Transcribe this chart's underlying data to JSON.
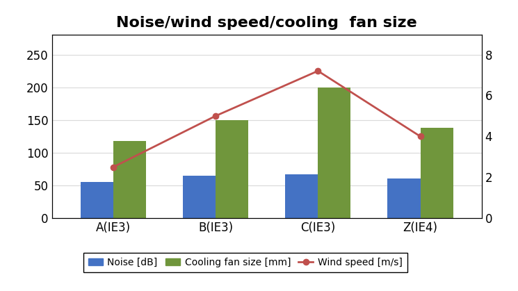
{
  "title": "Noise/wind speed/cooling  fan size",
  "categories": [
    "A(IE3)",
    "B(IE3)",
    "C(IE3)",
    "Z(IE4)"
  ],
  "noise_db": [
    55,
    65,
    67,
    61
  ],
  "cooling_fan_mm": [
    118,
    150,
    200,
    138
  ],
  "wind_speed_ms": [
    2.5,
    5.0,
    7.2,
    4.0
  ],
  "bar_color_noise": "#4472C4",
  "bar_color_fan": "#70963C",
  "line_color_wind": "#C0504D",
  "left_ylim": [
    0,
    280
  ],
  "left_yticks": [
    0,
    50,
    100,
    150,
    200,
    250
  ],
  "right_ylim": [
    0,
    8.96
  ],
  "right_yticks": [
    0,
    2,
    4,
    6,
    8
  ],
  "legend_noise": "Noise [dB]",
  "legend_fan": "Cooling fan size [mm]",
  "legend_wind": "Wind speed [m/s]",
  "bar_width": 0.32,
  "title_fontsize": 16,
  "tick_fontsize": 12,
  "legend_fontsize": 10,
  "background_color": "#ffffff",
  "grid_color": "#D9D9D9"
}
